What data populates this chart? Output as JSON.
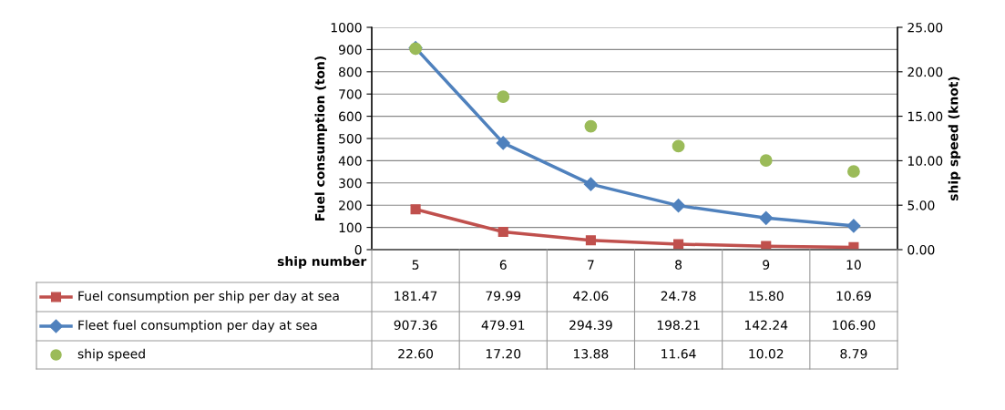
{
  "chart_data": {
    "type": "line",
    "xlabel": "ship number",
    "ylabel": "Fuel consumption (ton)",
    "y2label": "ship speed (knot)",
    "categories": [
      "5",
      "6",
      "7",
      "8",
      "9",
      "10"
    ],
    "series": [
      {
        "name": "Fuel consumption per ship per day at sea",
        "color": "#c0504d",
        "marker": "square",
        "values": [
          181.47,
          79.99,
          42.06,
          24.78,
          15.8,
          10.69
        ],
        "value_labels": [
          "181.47",
          "79.99",
          "42.06",
          "24.78",
          "15.80",
          "10.69"
        ]
      },
      {
        "name": "Fleet fuel consumption per day at sea",
        "color": "#4f81bd",
        "marker": "diamond",
        "values": [
          907.36,
          479.91,
          294.39,
          198.21,
          142.24,
          106.9
        ],
        "value_labels": [
          "907.36",
          "479.91",
          "294.39",
          "198.21",
          "142.24",
          "106.90"
        ]
      },
      {
        "name": "ship speed",
        "type": "scatter",
        "axis": "y2",
        "color": "#9bbb59",
        "marker": "circle",
        "values": [
          22.6,
          17.2,
          13.88,
          11.64,
          10.02,
          8.79
        ],
        "value_labels": [
          "22.60",
          "17.20",
          "13.88",
          "11.64",
          "10.02",
          "8.79"
        ]
      }
    ],
    "ylim": [
      0,
      1000
    ],
    "yticks": [
      0,
      100,
      200,
      300,
      400,
      500,
      600,
      700,
      800,
      900,
      1000
    ],
    "y2lim": [
      0,
      25
    ],
    "y2ticks": [
      {
        "value": 0,
        "label": "0.00"
      },
      {
        "value": 5,
        "label": "5.00"
      },
      {
        "value": 10,
        "label": "10.00"
      },
      {
        "value": 15,
        "label": "15.00"
      },
      {
        "value": 20,
        "label": "20.00"
      },
      {
        "value": 25,
        "label": "25.00"
      }
    ],
    "grid": "y",
    "legend": "bottom left"
  }
}
